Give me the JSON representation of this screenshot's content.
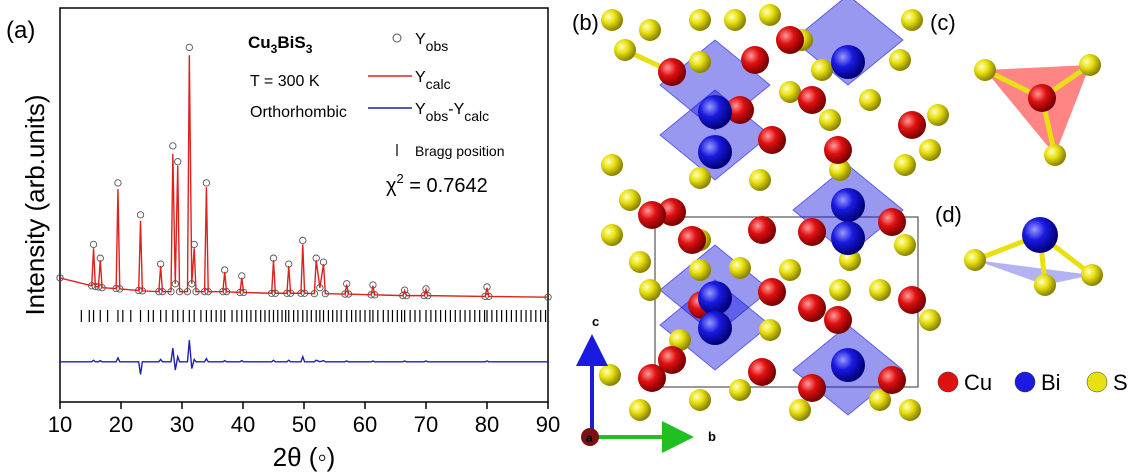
{
  "chart_data": {
    "type": "line",
    "panel_label": "(a)",
    "title": [
      "Cu",
      "3",
      "BiS",
      "3"
    ],
    "annotations": [
      "T = 300 K",
      "Orthorhombic"
    ],
    "chi_square": [
      "χ",
      "2",
      " = 0.7642"
    ],
    "xlabel": "2θ (◦)",
    "ylabel": "Intensity (arb.units)",
    "xlim": [
      10,
      90
    ],
    "ylim": [
      0,
      100
    ],
    "xticks": [
      10,
      20,
      30,
      40,
      50,
      60,
      70,
      80,
      90
    ],
    "x": [
      10,
      15.2,
      15.5,
      15.8,
      16.3,
      16.6,
      16.9,
      19.2,
      19.5,
      19.8,
      22.9,
      23.2,
      23.5,
      26.2,
      26.5,
      26.8,
      28.2,
      28.5,
      28.9,
      29.3,
      29.6,
      30.9,
      31.2,
      31.6,
      32.0,
      32.3,
      33.7,
      34.0,
      34.3,
      36.7,
      37.0,
      37.3,
      39.5,
      39.8,
      40.1,
      44.7,
      45.0,
      45.3,
      47.2,
      47.5,
      47.8,
      49.5,
      49.8,
      50.1,
      51.7,
      52.0,
      52.6,
      53.2,
      53.5,
      56.7,
      57.0,
      57.3,
      61.0,
      61.3,
      61.6,
      66.2,
      66.5,
      66.8,
      69.7,
      70.0,
      70.3,
      79.7,
      80.0,
      80.3,
      90
    ],
    "series": [
      {
        "name": [
          "Y",
          "obs"
        ],
        "style": "markers",
        "color": "#555555",
        "values": [
          31.5,
          29.5,
          40,
          29.3,
          29.2,
          36.5,
          29,
          28.8,
          55.6,
          28.7,
          28.3,
          47.5,
          28.2,
          28,
          35,
          28,
          28,
          65,
          30,
          61,
          28,
          28,
          90,
          30,
          40,
          28,
          28,
          55.6,
          28,
          28,
          33.5,
          28,
          27.8,
          32,
          27.8,
          27.6,
          36.5,
          27.6,
          27.6,
          35,
          27.6,
          27.6,
          41,
          27.6,
          27.5,
          36.5,
          29,
          35.5,
          27.5,
          27.4,
          30,
          27.4,
          27.2,
          29.7,
          27.2,
          27,
          28.4,
          27,
          27,
          28.7,
          27,
          26.8,
          29.2,
          26.8,
          26.6
        ]
      },
      {
        "name": [
          "Y",
          "calc"
        ],
        "style": "line",
        "color": "#e0201b",
        "values": [
          31.5,
          29.5,
          39,
          29.3,
          29.2,
          36,
          29,
          28.8,
          54,
          28.7,
          28.3,
          46,
          28.2,
          28,
          34.5,
          28,
          28,
          63,
          30,
          60,
          28,
          28,
          88,
          30,
          39,
          28,
          28,
          54.5,
          28,
          28,
          33,
          28,
          27.8,
          31.5,
          27.8,
          27.6,
          36,
          27.6,
          27.6,
          34.5,
          27.6,
          27.6,
          40,
          27.6,
          27.5,
          36,
          29,
          35,
          27.5,
          27.4,
          29.8,
          27.4,
          27.2,
          29.5,
          27.2,
          27,
          28.3,
          27,
          27,
          28.6,
          27,
          26.8,
          29,
          26.8,
          26.6
        ]
      },
      {
        "name": [
          "Y",
          "obs",
          "-",
          "Y",
          "calc"
        ],
        "style": "line",
        "color": "#1f1fb4",
        "values": [
          10.2,
          10.2,
          10.6,
          10.2,
          10.2,
          10.5,
          10.2,
          10.2,
          11.2,
          10.2,
          10.2,
          7,
          10.2,
          10.2,
          10.8,
          10.2,
          10.2,
          13.7,
          8.1,
          11.5,
          10.2,
          10.2,
          15.7,
          8.5,
          10.8,
          10.2,
          10.2,
          11,
          10.2,
          10.2,
          10.5,
          10.2,
          10.2,
          10.5,
          10.2,
          10.2,
          10.6,
          10.2,
          10.2,
          10.6,
          10.2,
          10.2,
          11.5,
          10.2,
          10.2,
          10.6,
          10.2,
          10.5,
          10.2,
          10.2,
          10.4,
          10.2,
          10.2,
          10.4,
          10.2,
          10.2,
          10.4,
          10.2,
          10.2,
          10.4,
          10.2,
          10.2,
          10.4,
          10.2,
          10.2
        ]
      }
    ],
    "bragg": {
      "name": "Bragg position",
      "color": "#000000",
      "positions": [
        13.5,
        14.8,
        15.5,
        16.6,
        17.8,
        19.5,
        20.3,
        21.6,
        23.2,
        24.5,
        25.3,
        26.5,
        27.4,
        28.5,
        29.3,
        30.2,
        31.2,
        32,
        33.1,
        34,
        34.8,
        35.6,
        36.4,
        37,
        38.2,
        39,
        39.8,
        40.6,
        41.3,
        42.1,
        42.9,
        43.6,
        44.3,
        45,
        45.7,
        46.4,
        47,
        47.5,
        48.3,
        49,
        49.8,
        50.5,
        51.2,
        52,
        52.6,
        53.2,
        54,
        54.7,
        55.4,
        56.1,
        57,
        57.8,
        58.5,
        59.2,
        60,
        60.8,
        61.3,
        62.1,
        63,
        63.8,
        64.5,
        65.3,
        66,
        66.5,
        67.4,
        68.2,
        69,
        70,
        70.8,
        71.6,
        72.4,
        73.2,
        74,
        74.8,
        75.6,
        76.4,
        77.2,
        78,
        78.8,
        79.6,
        80,
        80.8,
        81.6,
        82.4,
        83.2,
        84,
        84.8,
        85.6,
        86.4,
        87.2,
        88,
        88.8,
        89.6
      ]
    }
  },
  "structure": {
    "panel_labels": [
      "(b)",
      "(c)",
      "(d)"
    ],
    "axes": [
      "c",
      "b",
      "a"
    ],
    "legend": [
      {
        "name": "Cu",
        "color": "#e01010"
      },
      {
        "name": "Bi",
        "color": "#1a1ae0"
      },
      {
        "name": "S",
        "color": "#e8e010"
      }
    ]
  }
}
